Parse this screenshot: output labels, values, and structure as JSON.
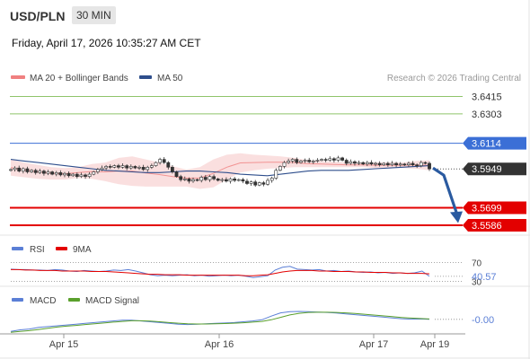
{
  "header": {
    "symbol": "USD/PLN",
    "interval": "30 MIN",
    "datetime": "Friday, April 17, 2026 10:35:27 AM CET"
  },
  "legend": {
    "ma20": "MA 20 + Bollinger Bands",
    "ma50": "MA 50",
    "copyright": "Research © 2026 Trading Central"
  },
  "colors": {
    "candle_up": "#1f9a3c",
    "candle_down": "#c0392b",
    "bollinger": "#f8d4d4",
    "ma20": "#f08080",
    "ma50": "#2e4e8c",
    "resistance": "#8fc46a",
    "pivot": "#3b6fd6",
    "support": "#e30000",
    "current": "#333333",
    "arrow": "#2a5aa0",
    "rsi": "#5b7fd6",
    "rsi_ma": "#e30000",
    "macd": "#5b7fd6",
    "macd_signal": "#5aa02c"
  },
  "chart_data": [
    {
      "type": "candlestick",
      "name": "price",
      "levels": [
        {
          "value": 3.6415,
          "label": "3.6415",
          "kind": "resistance"
        },
        {
          "value": 3.6303,
          "label": "3.6303",
          "kind": "resistance"
        },
        {
          "value": 3.6114,
          "label": "3.6114",
          "kind": "pivot"
        },
        {
          "value": 3.5949,
          "label": "3.5949",
          "kind": "current"
        },
        {
          "value": 3.5699,
          "label": "3.5699",
          "kind": "support"
        },
        {
          "value": 3.5586,
          "label": "3.5586",
          "kind": "support"
        }
      ],
      "x_ticks": [
        "Apr 15",
        "Apr 16",
        "Apr 17",
        "Apr 19"
      ],
      "close": [
        3.5945,
        3.5955,
        3.5935,
        3.595,
        3.593,
        3.594,
        3.5925,
        3.5935,
        3.592,
        3.593,
        3.5915,
        3.5925,
        3.591,
        3.592,
        3.5905,
        3.5915,
        3.59,
        3.591,
        3.59,
        3.5915,
        3.593,
        3.5945,
        3.5955,
        3.5965,
        3.596,
        3.597,
        3.596,
        3.597,
        3.5955,
        3.5965,
        3.5955,
        3.596,
        3.5945,
        3.596,
        3.597,
        3.599,
        3.601,
        3.599,
        3.596,
        3.593,
        3.59,
        3.588,
        3.5885,
        3.587,
        3.588,
        3.5875,
        3.5895,
        3.588,
        3.59,
        3.5885,
        3.5875,
        3.588,
        3.587,
        3.5885,
        3.5875,
        3.588,
        3.587,
        3.5855,
        3.5865,
        3.5845,
        3.586,
        3.585,
        3.5875,
        3.589,
        3.594,
        3.5965,
        3.599,
        3.6,
        3.601,
        3.599,
        3.6,
        3.6005,
        3.5995,
        3.6,
        3.6005,
        3.601,
        3.6005,
        3.6015,
        3.6005,
        3.602,
        3.6005,
        3.5985,
        3.5995,
        3.5985,
        3.599,
        3.598,
        3.599,
        3.598,
        3.5985,
        3.5975,
        3.5985,
        3.5975,
        3.5985,
        3.5975,
        3.598,
        3.5975,
        3.5985,
        3.5975,
        3.597,
        3.599,
        3.5985,
        3.5949
      ],
      "ma50": [
        3.601,
        3.6,
        3.599,
        3.598,
        3.597,
        3.596,
        3.595,
        3.594,
        3.5935,
        3.593,
        3.5925,
        3.5925,
        3.593,
        3.5935,
        3.5935,
        3.593,
        3.5925,
        3.5915,
        3.591,
        3.5905,
        3.5915,
        3.5925,
        3.5935,
        3.594,
        3.594,
        3.594,
        3.5945,
        3.595,
        3.5955,
        3.596,
        3.5965,
        3.597
      ],
      "bollinger_upper": [
        3.601,
        3.599,
        3.5975,
        3.596,
        3.5955,
        3.596,
        3.598,
        3.599,
        3.602,
        3.603,
        3.601,
        3.599,
        3.5965,
        3.5945,
        3.596,
        3.601,
        3.604,
        3.605,
        3.604,
        3.6035,
        3.603,
        3.602,
        3.6005,
        3.6,
        3.5995,
        3.599,
        3.599,
        3.599,
        3.599,
        3.599,
        3.6,
        3.6005
      ],
      "bollinger_lower": [
        3.5905,
        3.5895,
        3.5885,
        3.588,
        3.588,
        3.589,
        3.5885,
        3.587,
        3.585,
        3.584,
        3.5835,
        3.5835,
        3.5835,
        3.5835,
        3.582,
        3.583,
        3.588,
        3.5925,
        3.594,
        3.595,
        3.5955,
        3.596,
        3.596,
        3.596,
        3.596,
        3.596,
        3.596,
        3.5955,
        3.5955,
        3.5955,
        3.595,
        3.594
      ],
      "forecast": {
        "from": 3.5955,
        "to": 3.5699
      }
    },
    {
      "type": "line",
      "name": "rsi",
      "series": [
        {
          "name": "RSI",
          "values": [
            56,
            55,
            55,
            54,
            54,
            53,
            55,
            54,
            52,
            51,
            53,
            52,
            51,
            52,
            54,
            53,
            55,
            52,
            48,
            44,
            42,
            43,
            42,
            43,
            44,
            42,
            43,
            41,
            42,
            43,
            42,
            43,
            41,
            38,
            40,
            42,
            54,
            60,
            62,
            56,
            55,
            54,
            55,
            52,
            53,
            51,
            52,
            50,
            49,
            50,
            48,
            49,
            47,
            48,
            47,
            48,
            52,
            40.57
          ]
        },
        {
          "name": "9MA",
          "values": [
            55,
            55,
            54,
            54,
            53,
            53,
            53,
            52,
            52,
            52,
            52,
            51,
            51,
            51,
            50,
            49,
            48,
            47,
            46,
            45,
            45,
            44,
            44,
            44,
            43,
            43,
            43,
            43,
            43,
            43,
            43,
            43,
            42,
            42,
            43,
            44,
            47,
            50,
            52,
            53,
            53,
            53,
            52,
            52,
            51,
            51,
            51,
            50,
            50,
            49,
            49,
            49,
            48,
            48,
            47,
            47,
            47,
            46
          ]
        }
      ],
      "levels": [
        {
          "value": 70,
          "label": "70"
        },
        {
          "value": 30,
          "label": "30"
        }
      ],
      "last_label": "40.57"
    },
    {
      "type": "line",
      "name": "macd",
      "series": [
        {
          "name": "MACD",
          "values": [
            -0.015,
            -0.013,
            -0.012,
            -0.01,
            -0.009,
            -0.008,
            -0.007,
            -0.006,
            -0.005,
            -0.004,
            -0.003,
            -0.002,
            -0.001,
            -0.001,
            -0.002,
            -0.003,
            -0.004,
            -0.005,
            -0.006,
            -0.0065,
            -0.006,
            -0.0055,
            -0.005,
            -0.0045,
            -0.004,
            -0.003,
            -0.002,
            -0.0005,
            0.004,
            0.008,
            0.0095,
            0.0098,
            0.0095,
            0.009,
            0.0085,
            0.0078,
            0.0068,
            0.0058,
            0.0048,
            0.0038,
            0.0028,
            0.0018,
            0.0008,
            0.0002,
            0.0004,
            0.0
          ]
        },
        {
          "name": "MACD Signal",
          "values": [
            -0.016,
            -0.015,
            -0.014,
            -0.0125,
            -0.011,
            -0.0095,
            -0.0085,
            -0.0075,
            -0.0065,
            -0.0055,
            -0.0045,
            -0.0035,
            -0.0025,
            -0.0018,
            -0.0018,
            -0.0022,
            -0.003,
            -0.004,
            -0.0048,
            -0.0055,
            -0.0058,
            -0.0058,
            -0.0055,
            -0.0052,
            -0.0048,
            -0.0042,
            -0.0035,
            -0.0025,
            -0.0005,
            0.0025,
            0.0055,
            0.0075,
            0.0085,
            0.0088,
            0.0088,
            0.0085,
            0.008,
            0.0072,
            0.0063,
            0.0053,
            0.0043,
            0.0033,
            0.0023,
            0.0015,
            0.001,
            0.0005
          ]
        }
      ],
      "last_label": "-0.00"
    }
  ]
}
